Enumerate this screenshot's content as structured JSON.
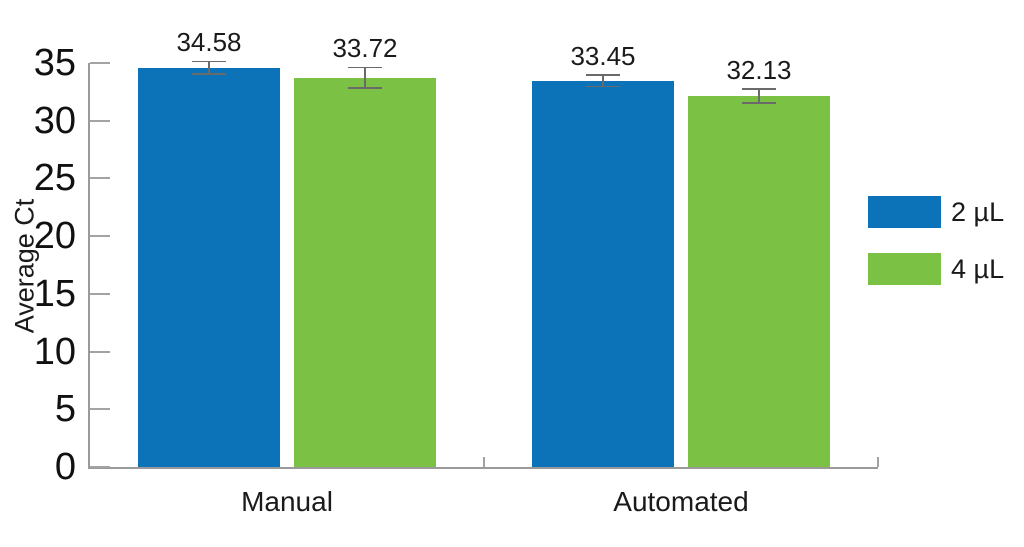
{
  "chart_data": {
    "type": "bar",
    "title": "",
    "ylabel": "Average Ct",
    "xlabel": "",
    "categories": [
      "Manual",
      "Automated"
    ],
    "series": [
      {
        "name": "2 µL",
        "color": "#0d73b8",
        "values": [
          34.58,
          33.45
        ],
        "errors": [
          0.55,
          0.5
        ]
      },
      {
        "name": "4 µL",
        "color": "#7bc143",
        "values": [
          33.72,
          32.13
        ],
        "errors": [
          0.9,
          0.6
        ]
      }
    ],
    "value_labels": [
      [
        "34.58",
        "33.45"
      ],
      [
        "33.72",
        "32.13"
      ]
    ],
    "ylim": [
      0,
      35
    ],
    "yticks": [
      0,
      5,
      10,
      15,
      20,
      25,
      30,
      35
    ],
    "grid": false,
    "legend_position": "right",
    "error_bars": true,
    "style": {
      "background": "#ffffff",
      "axis_color": "#9a9a9a",
      "text_color": "#1a1a1a"
    }
  }
}
